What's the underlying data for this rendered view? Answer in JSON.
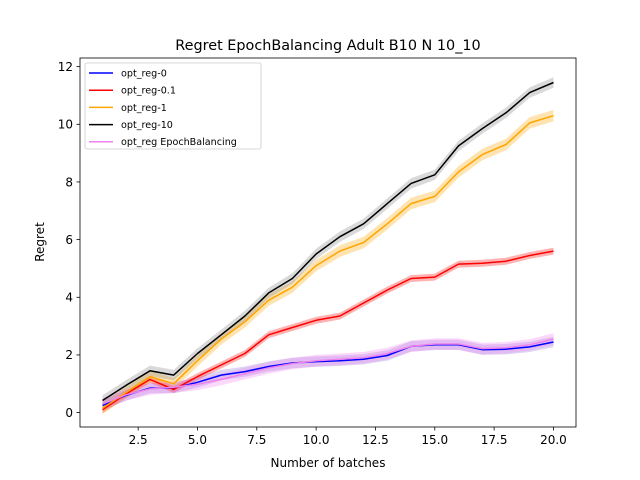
{
  "chart_data": {
    "type": "line",
    "title": "Regret EpochBalancing Adult B10 N 10_10",
    "xlabel": "Number of batches",
    "ylabel": "Regret",
    "xlim": [
      0.05,
      20.95
    ],
    "ylim": [
      -0.5,
      12.3
    ],
    "xticks": [
      2.5,
      5.0,
      7.5,
      10.0,
      12.5,
      15.0,
      17.5,
      20.0
    ],
    "xtick_labels": [
      "2.5",
      "5.0",
      "7.5",
      "10.0",
      "12.5",
      "15.0",
      "17.5",
      "20.0"
    ],
    "yticks": [
      0,
      2,
      4,
      6,
      8,
      10,
      12
    ],
    "ytick_labels": [
      "0",
      "2",
      "4",
      "6",
      "8",
      "10",
      "12"
    ],
    "grid": false,
    "legend_position": "top-left",
    "x": [
      1,
      2,
      3,
      4,
      5,
      6,
      7,
      8,
      9,
      10,
      11,
      12,
      13,
      14,
      15,
      16,
      17,
      18,
      19,
      20
    ],
    "series": [
      {
        "name": "opt_reg-0",
        "color": "#0000ff",
        "band_color": "#9370db",
        "values": [
          0.25,
          0.6,
          0.85,
          0.85,
          1.05,
          1.3,
          1.42,
          1.6,
          1.72,
          1.77,
          1.8,
          1.85,
          1.98,
          2.3,
          2.35,
          2.35,
          2.18,
          2.2,
          2.28,
          2.45
        ],
        "band": 0.18
      },
      {
        "name": "opt_reg-0.1",
        "color": "#ff0000",
        "band_color": "#ff0000",
        "values": [
          0.1,
          0.65,
          1.15,
          0.8,
          1.25,
          1.65,
          2.05,
          2.7,
          2.95,
          3.2,
          3.35,
          3.8,
          4.25,
          4.65,
          4.7,
          5.15,
          5.18,
          5.25,
          5.45,
          5.6
        ],
        "band": 0.12
      },
      {
        "name": "opt_reg-1",
        "color": "#ffa500",
        "band_color": "#ffa500",
        "values": [
          0.15,
          0.7,
          1.25,
          1.0,
          1.8,
          2.55,
          3.15,
          3.9,
          4.35,
          5.1,
          5.6,
          5.9,
          6.55,
          7.25,
          7.5,
          8.35,
          8.95,
          9.3,
          10.05,
          10.3
        ],
        "band": 0.2
      },
      {
        "name": "opt_reg-10",
        "color": "#000000",
        "band_color": "#808080",
        "values": [
          0.42,
          0.95,
          1.45,
          1.3,
          2.05,
          2.7,
          3.35,
          4.15,
          4.65,
          5.5,
          6.1,
          6.55,
          7.25,
          7.95,
          8.25,
          9.25,
          9.85,
          10.4,
          11.1,
          11.45
        ],
        "band": 0.18
      },
      {
        "name": "opt_reg EpochBalancing",
        "color": "#ee82ee",
        "band_color": "#ee82ee",
        "values": [
          0.3,
          0.62,
          0.82,
          0.88,
          0.98,
          1.15,
          1.35,
          1.55,
          1.7,
          1.8,
          1.85,
          1.9,
          2.05,
          2.3,
          2.38,
          2.38,
          2.22,
          2.25,
          2.35,
          2.55
        ],
        "band": 0.2
      }
    ]
  }
}
